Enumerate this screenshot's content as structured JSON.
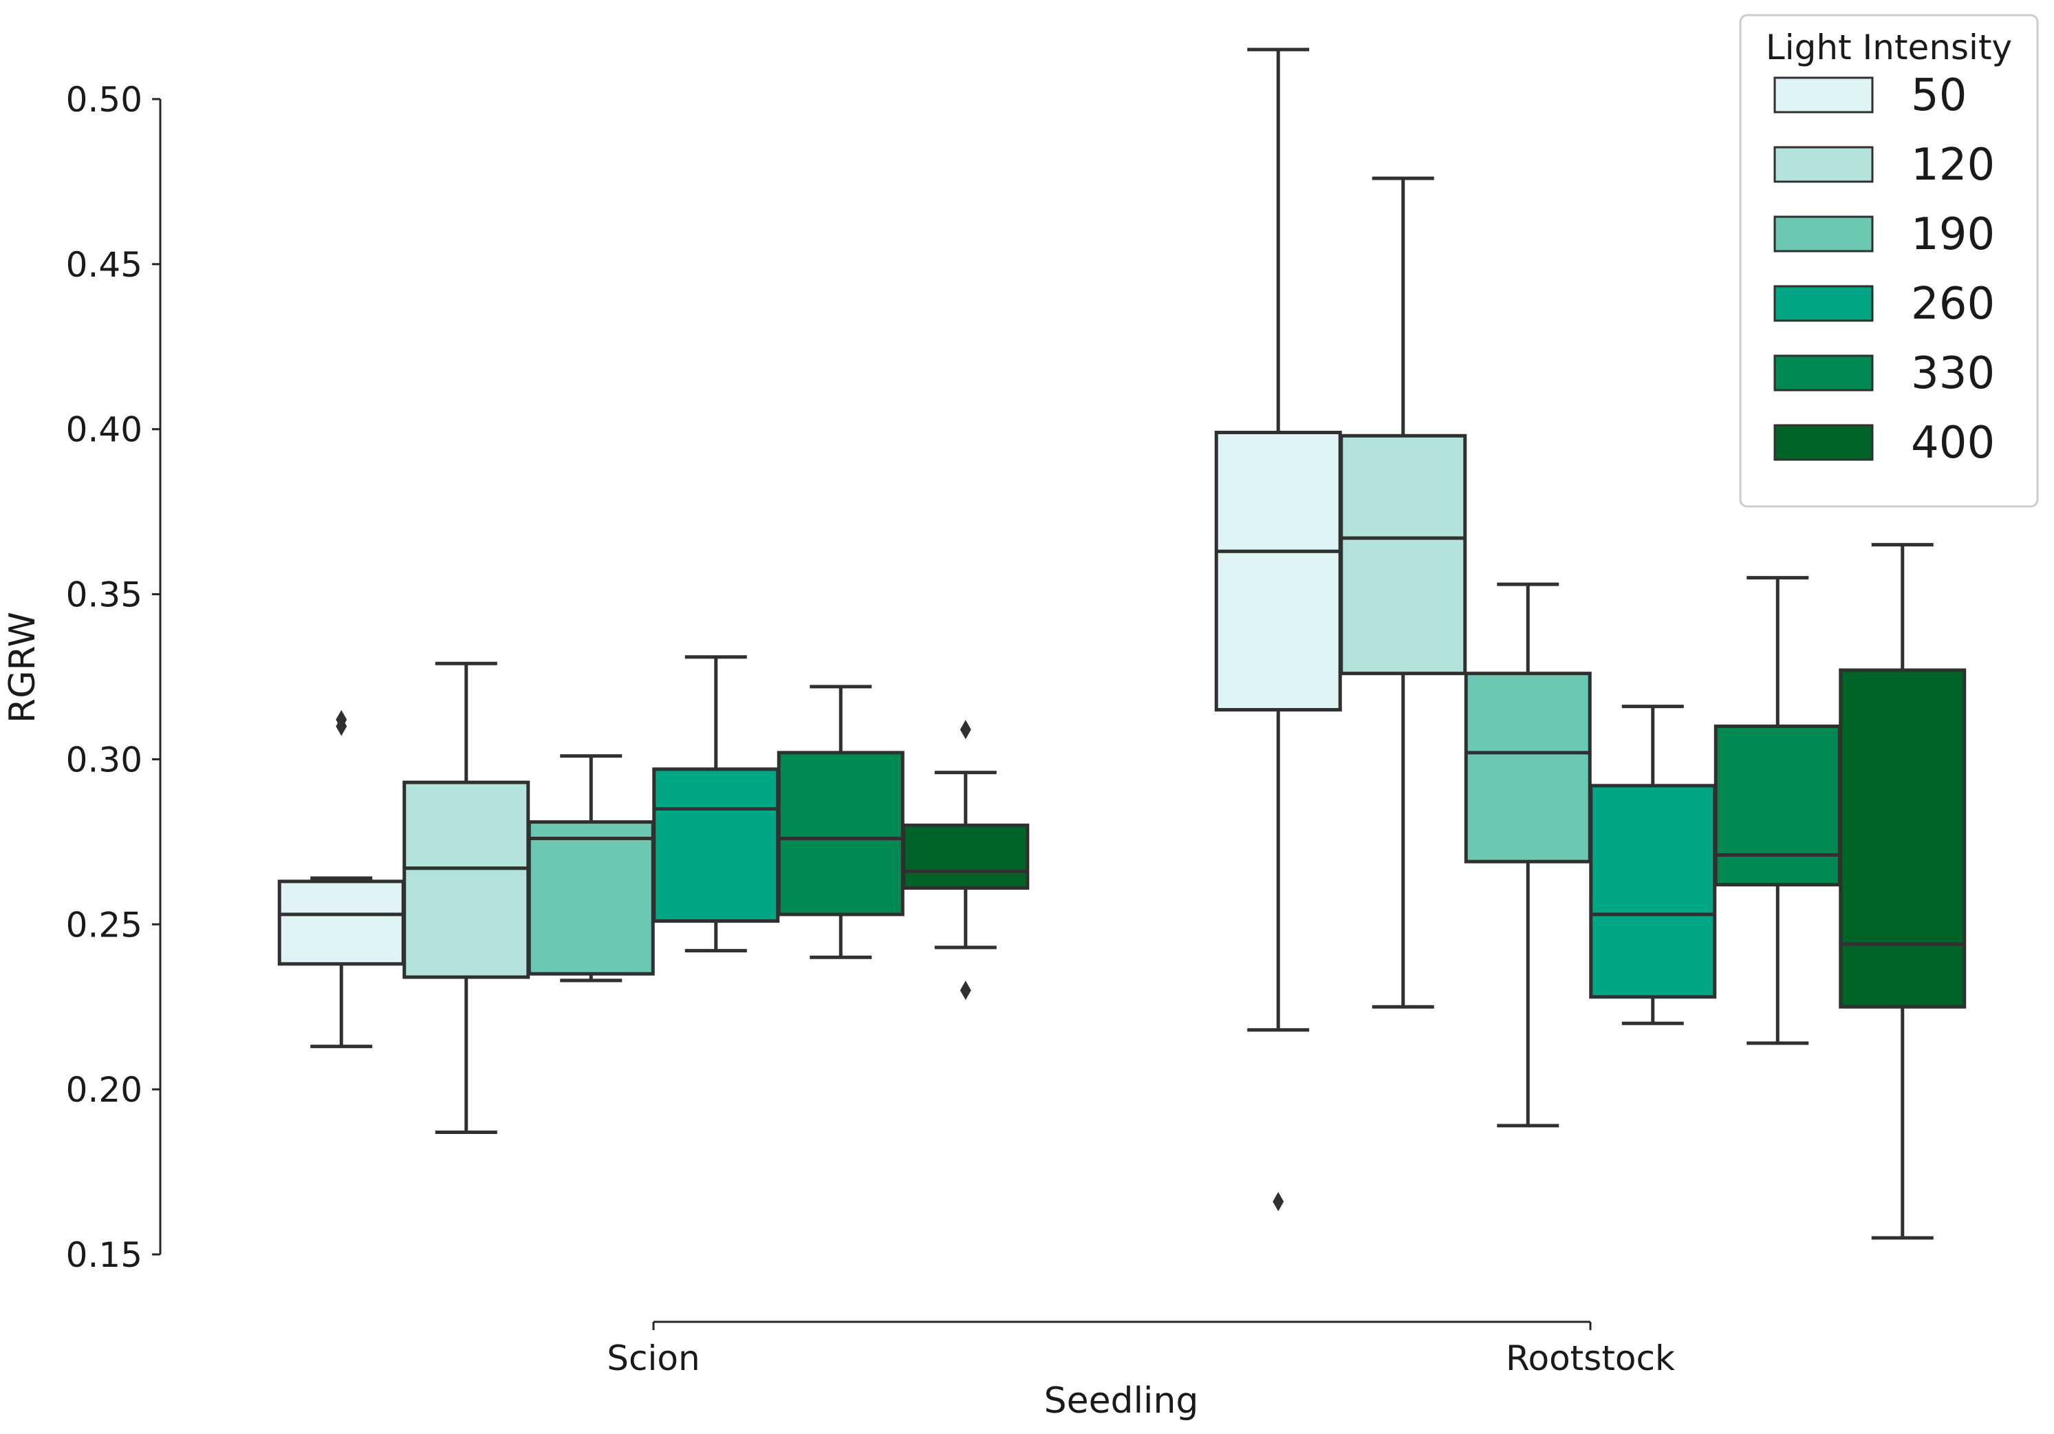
{
  "chart_data": {
    "type": "box",
    "title": "",
    "xlabel": "Seedling",
    "ylabel": "RGRW",
    "categories": [
      "Scion",
      "Rootstock"
    ],
    "ylim": [
      0.15,
      0.515
    ],
    "yticks": [
      0.15,
      0.2,
      0.25,
      0.3,
      0.35,
      0.4,
      0.45,
      0.5
    ],
    "ytick_labels": [
      "0.15",
      "0.20",
      "0.25",
      "0.30",
      "0.35",
      "0.40",
      "0.45",
      "0.50"
    ],
    "legend": {
      "title": "Light Intensity",
      "position": "top-right"
    },
    "series": [
      {
        "name": "50",
        "color": "#e0f3f5",
        "boxes": [
          {
            "category": "Scion",
            "whislo": 0.213,
            "q1": 0.238,
            "median": 0.253,
            "q3": 0.263,
            "whishi": 0.264,
            "fliers": [
              0.31,
              0.312
            ]
          },
          {
            "category": "Rootstock",
            "whislo": 0.218,
            "q1": 0.315,
            "median": 0.363,
            "q3": 0.399,
            "whishi": 0.515,
            "fliers": [
              0.166
            ]
          }
        ]
      },
      {
        "name": "120",
        "color": "#b3e3db",
        "boxes": [
          {
            "category": "Scion",
            "whislo": 0.187,
            "q1": 0.234,
            "median": 0.267,
            "q3": 0.293,
            "whishi": 0.329,
            "fliers": []
          },
          {
            "category": "Rootstock",
            "whislo": 0.225,
            "q1": 0.326,
            "median": 0.367,
            "q3": 0.398,
            "whishi": 0.476,
            "fliers": []
          }
        ]
      },
      {
        "name": "190",
        "color": "#6bc8b3",
        "boxes": [
          {
            "category": "Scion",
            "whislo": 0.233,
            "q1": 0.235,
            "median": 0.276,
            "q3": 0.281,
            "whishi": 0.301,
            "fliers": []
          },
          {
            "category": "Rootstock",
            "whislo": 0.189,
            "q1": 0.269,
            "median": 0.302,
            "q3": 0.326,
            "whishi": 0.353,
            "fliers": []
          }
        ]
      },
      {
        "name": "260",
        "color": "#00a785",
        "boxes": [
          {
            "category": "Scion",
            "whislo": 0.242,
            "q1": 0.251,
            "median": 0.285,
            "q3": 0.297,
            "whishi": 0.331,
            "fliers": []
          },
          {
            "category": "Rootstock",
            "whislo": 0.22,
            "q1": 0.228,
            "median": 0.253,
            "q3": 0.292,
            "whishi": 0.316,
            "fliers": []
          }
        ]
      },
      {
        "name": "330",
        "color": "#008a52",
        "boxes": [
          {
            "category": "Scion",
            "whislo": 0.24,
            "q1": 0.253,
            "median": 0.276,
            "q3": 0.302,
            "whishi": 0.322,
            "fliers": []
          },
          {
            "category": "Rootstock",
            "whislo": 0.214,
            "q1": 0.262,
            "median": 0.271,
            "q3": 0.31,
            "whishi": 0.355,
            "fliers": []
          }
        ]
      },
      {
        "name": "400",
        "color": "#006428",
        "boxes": [
          {
            "category": "Scion",
            "whislo": 0.243,
            "q1": 0.261,
            "median": 0.266,
            "q3": 0.28,
            "whishi": 0.296,
            "fliers": [
              0.23,
              0.309
            ]
          },
          {
            "category": "Rootstock",
            "whislo": 0.155,
            "q1": 0.225,
            "median": 0.244,
            "q3": 0.327,
            "whishi": 0.365,
            "fliers": []
          }
        ]
      }
    ]
  }
}
